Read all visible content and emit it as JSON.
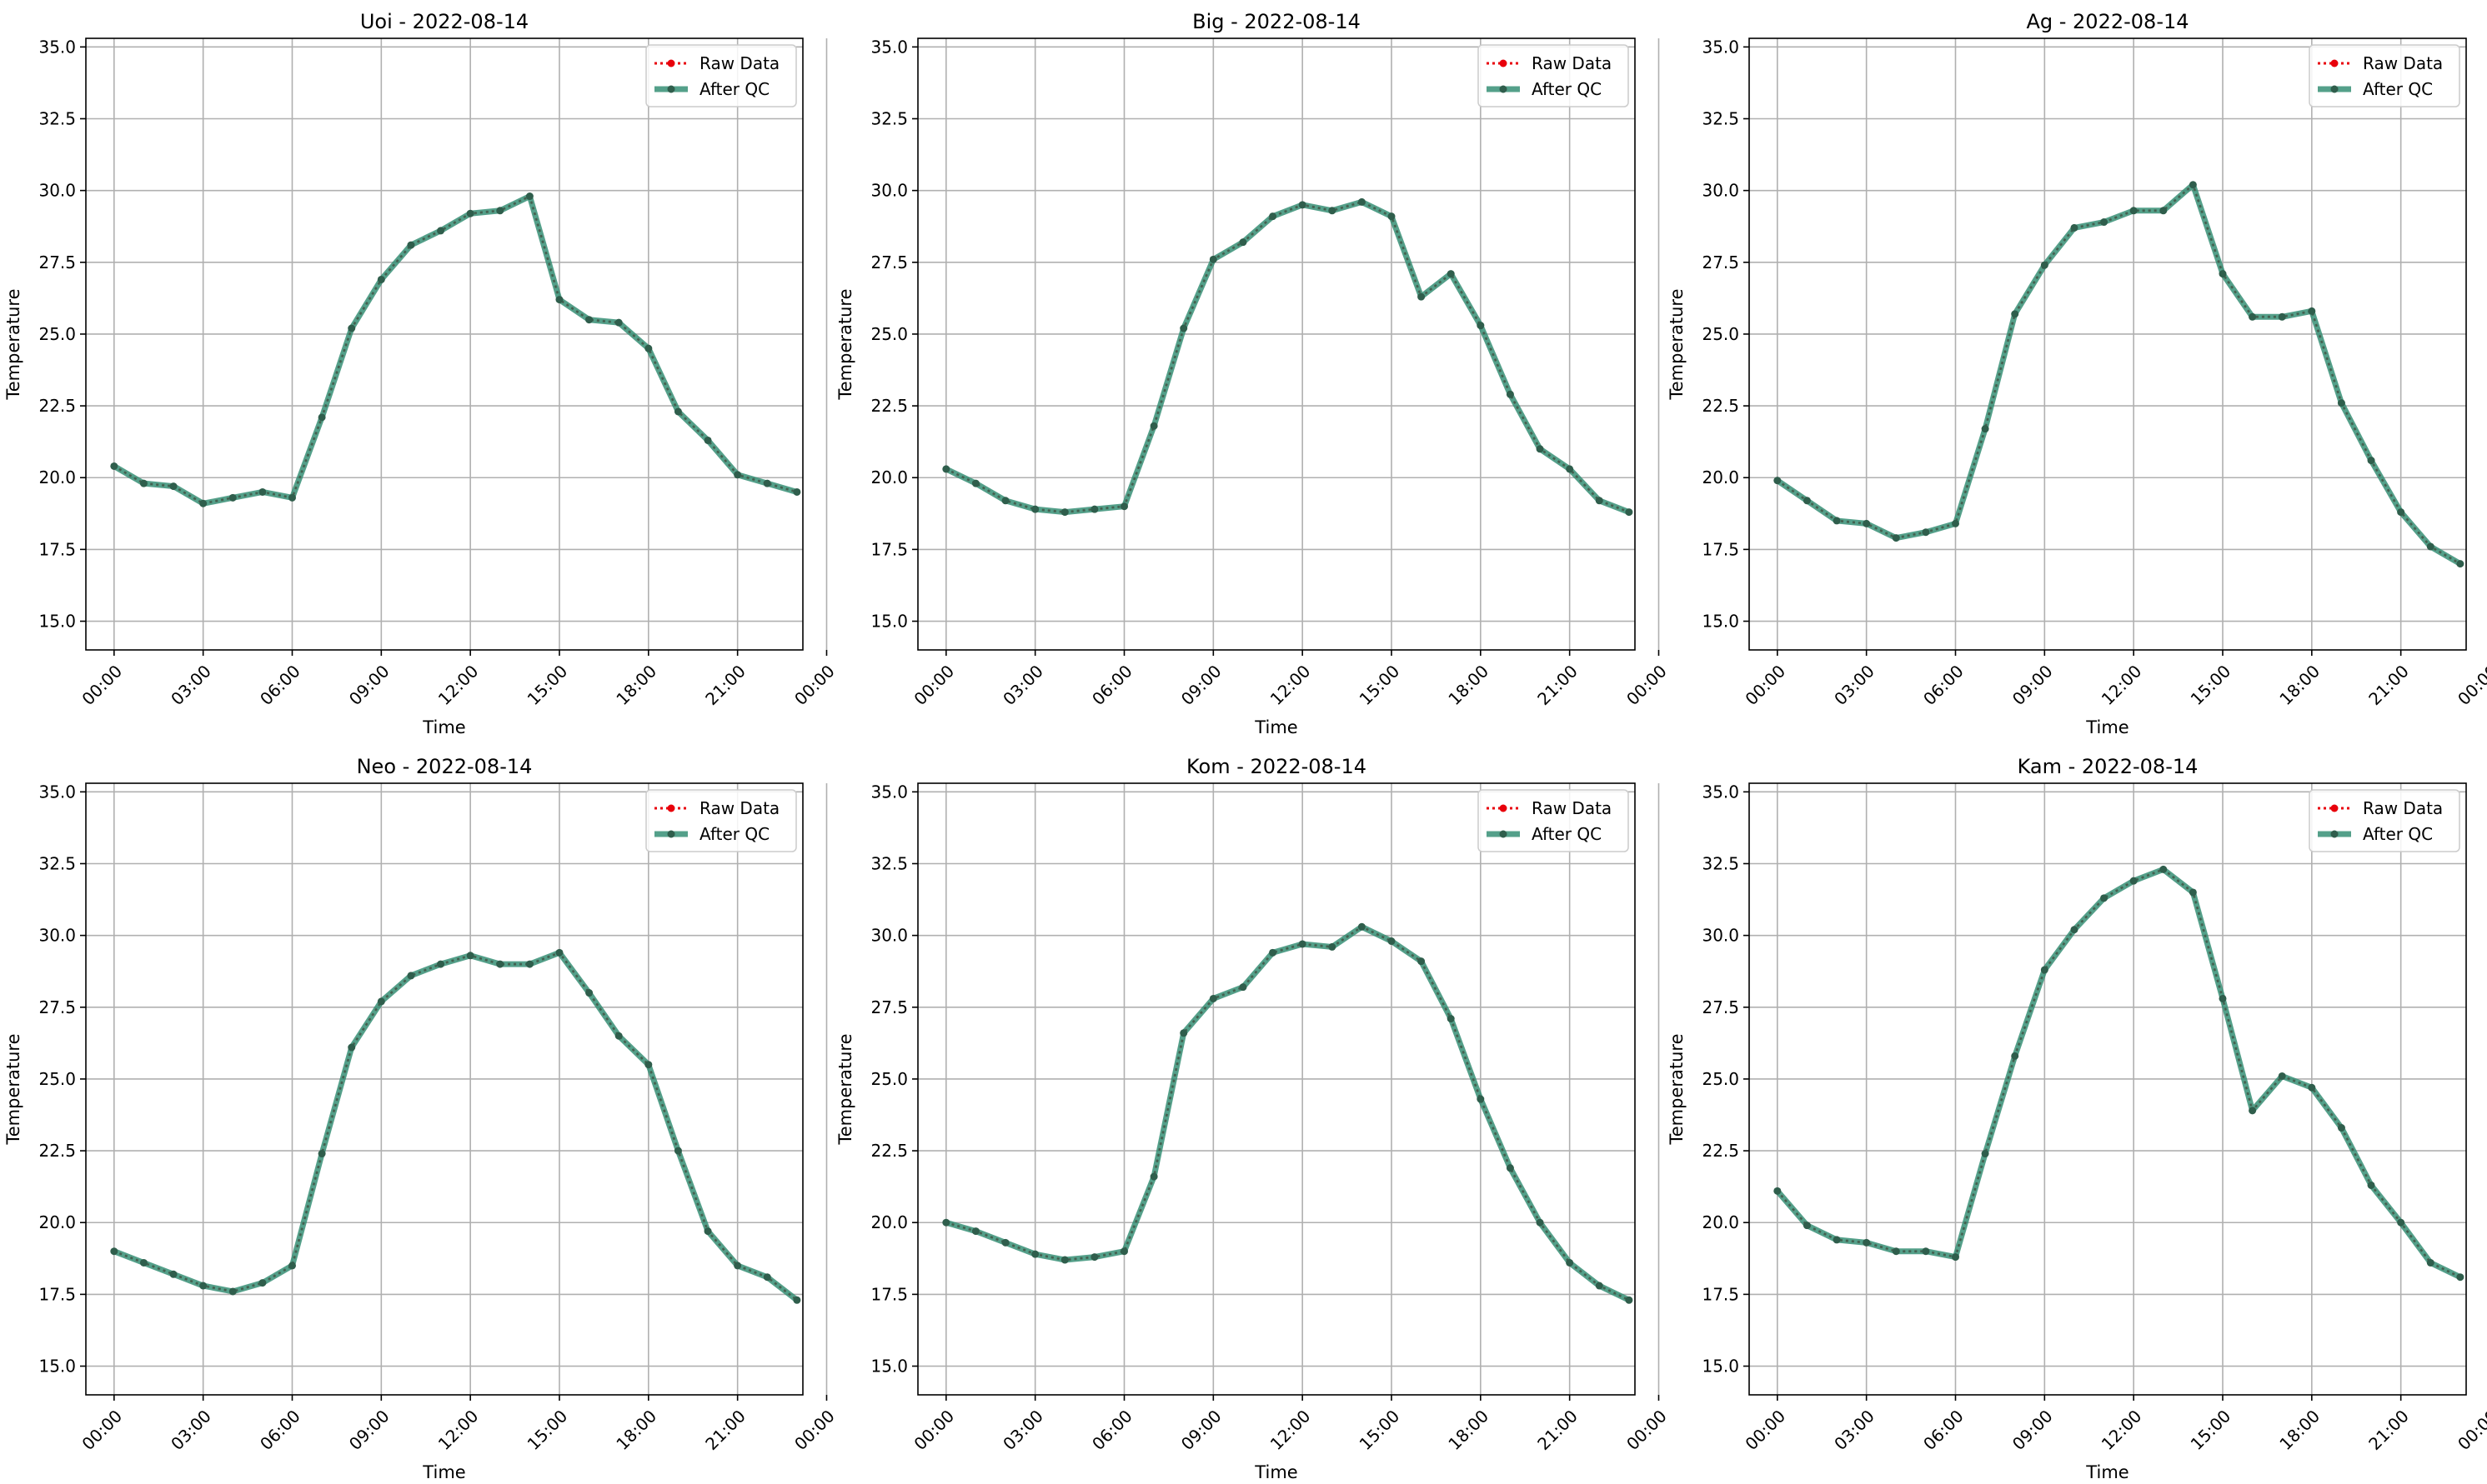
{
  "chart_data": [
    {
      "type": "line",
      "title": "Uoi - 2022-08-14",
      "xlabel": "Time",
      "ylabel": "Temperature",
      "xlim": [
        -0.95,
        23.2
      ],
      "ylim": [
        14.0,
        35.3
      ],
      "x": [
        0,
        1,
        2,
        3,
        4,
        5,
        6,
        7,
        8,
        9,
        10,
        11,
        12,
        13,
        14,
        15,
        16,
        17,
        18,
        19,
        20,
        21,
        22,
        23
      ],
      "xticks": [
        "00:00",
        "03:00",
        "06:00",
        "09:00",
        "12:00",
        "15:00",
        "18:00",
        "21:00",
        "00:00"
      ],
      "yticks": [
        "15.0",
        "17.5",
        "20.0",
        "22.5",
        "25.0",
        "27.5",
        "30.0",
        "32.5",
        "35.0"
      ],
      "grid": true,
      "legend": "top-right",
      "series": [
        {
          "name": "Raw Data",
          "color": "#e8000b",
          "values": [
            20.4,
            19.8,
            19.7,
            19.1,
            19.3,
            19.5,
            19.3,
            22.1,
            25.2,
            26.9,
            28.1,
            28.6,
            29.2,
            29.3,
            29.8,
            26.2,
            25.5,
            25.4,
            24.5,
            22.3,
            21.3,
            20.1,
            19.8,
            19.5
          ]
        },
        {
          "name": "After QC",
          "color": "#2e8b70",
          "values": [
            20.4,
            19.8,
            19.7,
            19.1,
            19.3,
            19.5,
            19.3,
            22.1,
            25.2,
            26.9,
            28.1,
            28.6,
            29.2,
            29.3,
            29.8,
            26.2,
            25.5,
            25.4,
            24.5,
            22.3,
            21.3,
            20.1,
            19.8,
            19.5
          ]
        }
      ]
    },
    {
      "type": "line",
      "title": "Big - 2022-08-14",
      "xlabel": "Time",
      "ylabel": "Temperature",
      "xlim": [
        -0.95,
        23.2
      ],
      "ylim": [
        14.0,
        35.3
      ],
      "x": [
        0,
        1,
        2,
        3,
        4,
        5,
        6,
        7,
        8,
        9,
        10,
        11,
        12,
        13,
        14,
        15,
        16,
        17,
        18,
        19,
        20,
        21,
        22,
        23
      ],
      "xticks": [
        "00:00",
        "03:00",
        "06:00",
        "09:00",
        "12:00",
        "15:00",
        "18:00",
        "21:00",
        "00:00"
      ],
      "yticks": [
        "15.0",
        "17.5",
        "20.0",
        "22.5",
        "25.0",
        "27.5",
        "30.0",
        "32.5",
        "35.0"
      ],
      "grid": true,
      "legend": "top-right",
      "series": [
        {
          "name": "Raw Data",
          "color": "#e8000b",
          "values": [
            20.3,
            19.8,
            19.2,
            18.9,
            18.8,
            18.9,
            19.0,
            21.8,
            25.2,
            27.6,
            28.2,
            29.1,
            29.5,
            29.3,
            29.6,
            29.1,
            26.3,
            27.1,
            25.3,
            22.9,
            21.0,
            20.3,
            19.2,
            18.8
          ]
        },
        {
          "name": "After QC",
          "color": "#2e8b70",
          "values": [
            20.3,
            19.8,
            19.2,
            18.9,
            18.8,
            18.9,
            19.0,
            21.8,
            25.2,
            27.6,
            28.2,
            29.1,
            29.5,
            29.3,
            29.6,
            29.1,
            26.3,
            27.1,
            25.3,
            22.9,
            21.0,
            20.3,
            19.2,
            18.8
          ]
        }
      ]
    },
    {
      "type": "line",
      "title": "Ag - 2022-08-14",
      "xlabel": "Time",
      "ylabel": "Temperature",
      "xlim": [
        -0.95,
        23.2
      ],
      "ylim": [
        14.0,
        35.3
      ],
      "x": [
        0,
        1,
        2,
        3,
        4,
        5,
        6,
        7,
        8,
        9,
        10,
        11,
        12,
        13,
        14,
        15,
        16,
        17,
        18,
        19,
        20,
        21,
        22,
        23
      ],
      "xticks": [
        "00:00",
        "03:00",
        "06:00",
        "09:00",
        "12:00",
        "15:00",
        "18:00",
        "21:00",
        "00:00"
      ],
      "yticks": [
        "15.0",
        "17.5",
        "20.0",
        "22.5",
        "25.0",
        "27.5",
        "30.0",
        "32.5",
        "35.0"
      ],
      "grid": true,
      "legend": "top-right",
      "series": [
        {
          "name": "Raw Data",
          "color": "#e8000b",
          "values": [
            19.9,
            19.2,
            18.5,
            18.4,
            17.9,
            18.1,
            18.4,
            21.7,
            25.7,
            27.4,
            28.7,
            28.9,
            29.3,
            29.3,
            30.2,
            27.1,
            25.6,
            25.6,
            25.8,
            22.6,
            20.6,
            18.8,
            17.6,
            17.0
          ]
        },
        {
          "name": "After QC",
          "color": "#2e8b70",
          "values": [
            19.9,
            19.2,
            18.5,
            18.4,
            17.9,
            18.1,
            18.4,
            21.7,
            25.7,
            27.4,
            28.7,
            28.9,
            29.3,
            29.3,
            30.2,
            27.1,
            25.6,
            25.6,
            25.8,
            22.6,
            20.6,
            18.8,
            17.6,
            17.0
          ]
        }
      ]
    },
    {
      "type": "line",
      "title": "Neo - 2022-08-14",
      "xlabel": "Time",
      "ylabel": "Temperature",
      "xlim": [
        -0.95,
        23.2
      ],
      "ylim": [
        14.0,
        35.3
      ],
      "x": [
        0,
        1,
        2,
        3,
        4,
        5,
        6,
        7,
        8,
        9,
        10,
        11,
        12,
        13,
        14,
        15,
        16,
        17,
        18,
        19,
        20,
        21,
        22,
        23
      ],
      "xticks": [
        "00:00",
        "03:00",
        "06:00",
        "09:00",
        "12:00",
        "15:00",
        "18:00",
        "21:00",
        "00:00"
      ],
      "yticks": [
        "15.0",
        "17.5",
        "20.0",
        "22.5",
        "25.0",
        "27.5",
        "30.0",
        "32.5",
        "35.0"
      ],
      "grid": true,
      "legend": "top-right",
      "series": [
        {
          "name": "Raw Data",
          "color": "#e8000b",
          "values": [
            19.0,
            18.6,
            18.2,
            17.8,
            17.6,
            17.9,
            18.5,
            22.4,
            26.1,
            27.7,
            28.6,
            29.0,
            29.3,
            29.0,
            29.0,
            29.4,
            28.0,
            26.5,
            25.5,
            22.5,
            19.7,
            18.5,
            18.1,
            17.3
          ]
        },
        {
          "name": "After QC",
          "color": "#2e8b70",
          "values": [
            19.0,
            18.6,
            18.2,
            17.8,
            17.6,
            17.9,
            18.5,
            22.4,
            26.1,
            27.7,
            28.6,
            29.0,
            29.3,
            29.0,
            29.0,
            29.4,
            28.0,
            26.5,
            25.5,
            22.5,
            19.7,
            18.5,
            18.1,
            17.3
          ]
        }
      ]
    },
    {
      "type": "line",
      "title": "Kom - 2022-08-14",
      "xlabel": "Time",
      "ylabel": "Temperature",
      "xlim": [
        -0.95,
        23.2
      ],
      "ylim": [
        14.0,
        35.3
      ],
      "x": [
        0,
        1,
        2,
        3,
        4,
        5,
        6,
        7,
        8,
        9,
        10,
        11,
        12,
        13,
        14,
        15,
        16,
        17,
        18,
        19,
        20,
        21,
        22,
        23
      ],
      "xticks": [
        "00:00",
        "03:00",
        "06:00",
        "09:00",
        "12:00",
        "15:00",
        "18:00",
        "21:00",
        "00:00"
      ],
      "yticks": [
        "15.0",
        "17.5",
        "20.0",
        "22.5",
        "25.0",
        "27.5",
        "30.0",
        "32.5",
        "35.0"
      ],
      "grid": true,
      "legend": "top-right",
      "series": [
        {
          "name": "Raw Data",
          "color": "#e8000b",
          "values": [
            20.0,
            19.7,
            19.3,
            18.9,
            18.7,
            18.8,
            19.0,
            21.6,
            26.6,
            27.8,
            28.2,
            29.4,
            29.7,
            29.6,
            30.3,
            29.8,
            29.1,
            27.1,
            24.3,
            21.9,
            20.0,
            18.6,
            17.8,
            17.3
          ]
        },
        {
          "name": "After QC",
          "color": "#2e8b70",
          "values": [
            20.0,
            19.7,
            19.3,
            18.9,
            18.7,
            18.8,
            19.0,
            21.6,
            26.6,
            27.8,
            28.2,
            29.4,
            29.7,
            29.6,
            30.3,
            29.8,
            29.1,
            27.1,
            24.3,
            21.9,
            20.0,
            18.6,
            17.8,
            17.3
          ]
        }
      ]
    },
    {
      "type": "line",
      "title": "Kam - 2022-08-14",
      "xlabel": "Time",
      "ylabel": "Temperature",
      "xlim": [
        -0.95,
        23.2
      ],
      "ylim": [
        14.0,
        35.3
      ],
      "x": [
        0,
        1,
        2,
        3,
        4,
        5,
        6,
        7,
        8,
        9,
        10,
        11,
        12,
        13,
        14,
        15,
        16,
        17,
        18,
        19,
        20,
        21,
        22,
        23
      ],
      "xticks": [
        "00:00",
        "03:00",
        "06:00",
        "09:00",
        "12:00",
        "15:00",
        "18:00",
        "21:00",
        "00:00"
      ],
      "yticks": [
        "15.0",
        "17.5",
        "20.0",
        "22.5",
        "25.0",
        "27.5",
        "30.0",
        "32.5",
        "35.0"
      ],
      "grid": true,
      "legend": "top-right",
      "series": [
        {
          "name": "Raw Data",
          "color": "#e8000b",
          "values": [
            21.1,
            19.9,
            19.4,
            19.3,
            19.0,
            19.0,
            18.8,
            22.4,
            25.8,
            28.8,
            30.2,
            31.3,
            31.9,
            32.3,
            31.5,
            27.8,
            23.9,
            25.1,
            24.7,
            23.3,
            21.3,
            20.0,
            18.6,
            18.1
          ]
        },
        {
          "name": "After QC",
          "color": "#2e8b70",
          "values": [
            21.1,
            19.9,
            19.4,
            19.3,
            19.0,
            19.0,
            18.8,
            22.4,
            25.8,
            28.8,
            30.2,
            31.3,
            31.9,
            32.3,
            31.5,
            27.8,
            23.9,
            25.1,
            24.7,
            23.3,
            21.3,
            20.0,
            18.6,
            18.1
          ]
        }
      ]
    }
  ]
}
